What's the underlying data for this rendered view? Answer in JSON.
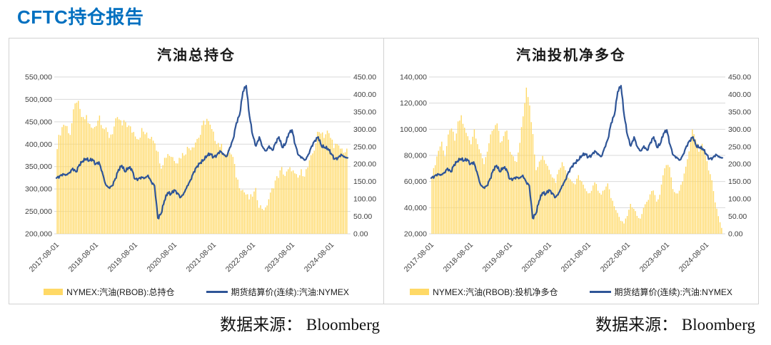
{
  "report_title": "CFTC持仓报告",
  "theme": {
    "accent": "#0070C0",
    "bar_color": "#FFD966",
    "line_color": "#2F5597",
    "grid_color": "#D9D9D9"
  },
  "source_notes": [
    "数据来源： Bloomberg",
    "数据来源： Bloomberg"
  ],
  "chart_data": [
    {
      "type": "combo-bar-line",
      "title": "汽油总持仓",
      "x_start": "2017-08-01",
      "x_step": "monthly",
      "x_tick_labels": [
        "2017-08-01",
        "2018-08-01",
        "2019-08-01",
        "2020-08-01",
        "2021-08-01",
        "2022-08-01",
        "2023-08-01",
        "2024-08-01"
      ],
      "x_tick_positions": [
        0,
        12,
        24,
        36,
        48,
        60,
        72,
        84
      ],
      "left_axis": {
        "min": 200000,
        "max": 550000,
        "ticks": [
          "550,000",
          "500,000",
          "450,000",
          "400,000",
          "350,000",
          "300,000",
          "250,000",
          "200,000"
        ]
      },
      "right_axis": {
        "min": 0,
        "max": 450,
        "ticks": [
          "450.00",
          "400.00",
          "350.00",
          "300.00",
          "250.00",
          "200.00",
          "150.00",
          "100.00",
          "50.00",
          "0.00"
        ]
      },
      "legend_position": "bottom",
      "grid": true,
      "bars": {
        "name": "NYMEX:汽油(RBOB):总持仓",
        "axis": "left",
        "color": "#FFD966",
        "values": [
          398000,
          428000,
          446000,
          438000,
          424000,
          468000,
          500000,
          472000,
          452000,
          462000,
          440000,
          432000,
          448000,
          464000,
          442000,
          428000,
          418000,
          428000,
          448000,
          456000,
          440000,
          450000,
          438000,
          430000,
          424000,
          414000,
          430000,
          424000,
          414000,
          420000,
          408000,
          378000,
          352000,
          368000,
          380000,
          374000,
          368000,
          362000,
          374000,
          380000,
          390000,
          394000,
          400000,
          412000,
          422000,
          446000,
          456000,
          438000,
          420000,
          408000,
          398000,
          388000,
          378000,
          384000,
          368000,
          330000,
          308000,
          298000,
          288000,
          278000,
          286000,
          296000,
          264000,
          258000,
          254000,
          278000,
          298000,
          318000,
          330000,
          344000,
          330000,
          340000,
          346000,
          330000,
          324000,
          338000,
          334000,
          348000,
          368000,
          390000,
          420000,
          432000,
          420000,
          426000,
          414000,
          400000,
          394000,
          390000,
          386000,
          382000
        ]
      },
      "line": {
        "name": "期货结算价(连续):汽油:NYMEX",
        "axis": "right",
        "color": "#2F5597",
        "values": [
          160,
          166,
          172,
          170,
          176,
          188,
          178,
          198,
          208,
          215,
          210,
          214,
          200,
          206,
          178,
          143,
          133,
          138,
          158,
          184,
          196,
          178,
          190,
          186,
          157,
          158,
          163,
          161,
          168,
          150,
          138,
          45,
          58,
          95,
          118,
          114,
          126,
          117,
          105,
          118,
          138,
          155,
          178,
          194,
          204,
          212,
          224,
          230,
          220,
          226,
          238,
          230,
          222,
          248,
          272,
          318,
          342,
          408,
          425,
          338,
          282,
          252,
          278,
          250,
          238,
          252,
          240,
          262,
          278,
          248,
          258,
          288,
          298,
          255,
          226,
          220,
          212,
          228,
          252,
          268,
          278,
          252,
          248,
          244,
          230,
          215,
          218,
          228,
          222,
          218
        ]
      }
    },
    {
      "type": "combo-bar-line",
      "title": "汽油投机净多仓",
      "x_start": "2017-08-01",
      "x_step": "monthly",
      "x_tick_labels": [
        "2017-08-01",
        "2018-08-01",
        "2019-08-01",
        "2020-08-01",
        "2021-08-01",
        "2022-08-01",
        "2023-08-01",
        "2024-08-01"
      ],
      "x_tick_positions": [
        0,
        12,
        24,
        36,
        48,
        60,
        72,
        84
      ],
      "left_axis": {
        "min": 20000,
        "max": 140000,
        "ticks": [
          "140,000",
          "120,000",
          "100,000",
          "80,000",
          "60,000",
          "40,000",
          "20,000"
        ]
      },
      "right_axis": {
        "min": 0,
        "max": 450,
        "ticks": [
          "450.00",
          "400.00",
          "350.00",
          "300.00",
          "250.00",
          "200.00",
          "150.00",
          "100.00",
          "50.00",
          "0.00"
        ]
      },
      "legend_position": "bottom",
      "grid": true,
      "bars": {
        "name": "NYMEX:汽油(RBOB):投机净多仓",
        "axis": "left",
        "color": "#FFD966",
        "values": [
          64000,
          74000,
          84000,
          90000,
          80000,
          94000,
          102000,
          90000,
          104000,
          110000,
          100000,
          94000,
          90000,
          100000,
          90000,
          80000,
          74000,
          84000,
          94000,
          100000,
          104000,
          90000,
          94000,
          100000,
          84000,
          80000,
          74000,
          90000,
          110000,
          133000,
          120000,
          95000,
          70000,
          75000,
          80000,
          74000,
          70000,
          64000,
          60000,
          70000,
          74000,
          70000,
          64000,
          60000,
          58000,
          64000,
          60000,
          54000,
          50000,
          54000,
          60000,
          54000,
          50000,
          54000,
          58000,
          48000,
          42000,
          36000,
          30000,
          28000,
          34000,
          42000,
          40000,
          34000,
          31000,
          40000,
          44000,
          50000,
          54000,
          44000,
          50000,
          64000,
          74000,
          70000,
          54000,
          50000,
          54000,
          60000,
          70000,
          84000,
          98000,
          94000,
          84000,
          88000,
          80000,
          70000,
          60000,
          44000,
          34000,
          24000
        ]
      },
      "line": {
        "name": "期货结算价(连续):汽油:NYMEX",
        "axis": "right",
        "color": "#2F5597",
        "values": [
          160,
          166,
          172,
          170,
          176,
          188,
          178,
          198,
          208,
          215,
          210,
          214,
          200,
          206,
          178,
          143,
          133,
          138,
          158,
          184,
          196,
          178,
          190,
          186,
          157,
          158,
          163,
          161,
          168,
          150,
          138,
          45,
          58,
          95,
          118,
          114,
          126,
          117,
          105,
          118,
          138,
          155,
          178,
          194,
          204,
          212,
          224,
          230,
          220,
          226,
          238,
          230,
          222,
          248,
          272,
          318,
          342,
          408,
          425,
          338,
          282,
          252,
          278,
          250,
          238,
          252,
          240,
          262,
          278,
          248,
          258,
          288,
          298,
          255,
          226,
          220,
          212,
          228,
          252,
          268,
          278,
          252,
          248,
          244,
          230,
          215,
          218,
          228,
          222,
          218
        ]
      }
    }
  ]
}
